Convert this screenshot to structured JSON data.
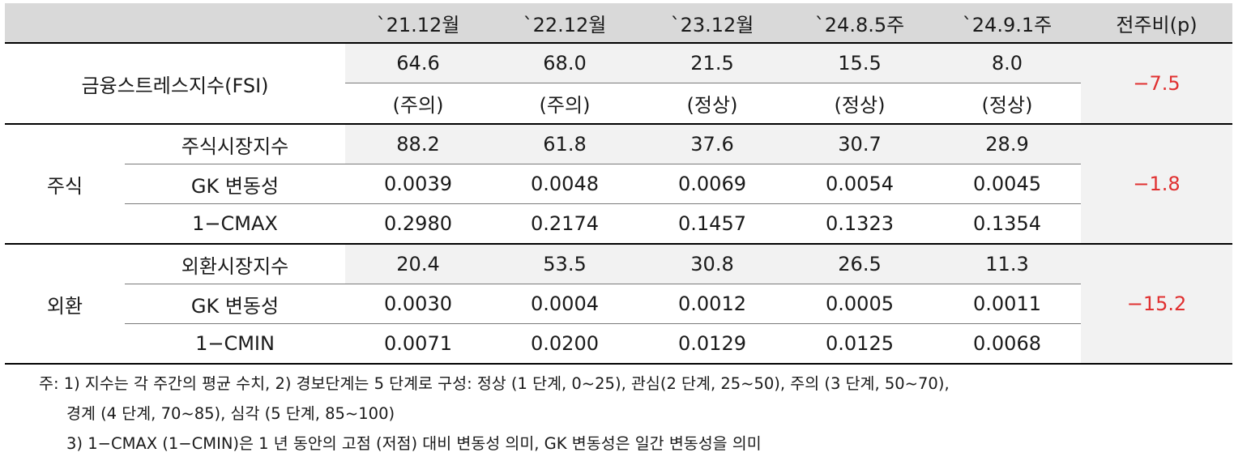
{
  "header": {
    "columns": [
      "`21.12월",
      "`22.12월",
      "`23.12월",
      "`24.8.5주",
      "`24.9.1주"
    ],
    "change": "전주비(p)"
  },
  "fsi": {
    "label": "금융스트레스지수(FSI)",
    "values": [
      "64.6",
      "68.0",
      "21.5",
      "15.5",
      "8.0"
    ],
    "statuses": [
      "(주의)",
      "(주의)",
      "(정상)",
      "(정상)",
      "(정상)"
    ],
    "change": "−7.5"
  },
  "stock": {
    "group": "주식",
    "change": "−1.8",
    "rows": [
      {
        "label": "주식시장지수",
        "values": [
          "88.2",
          "61.8",
          "37.6",
          "30.7",
          "28.9"
        ]
      },
      {
        "label": "GK 변동성",
        "values": [
          "0.0039",
          "0.0048",
          "0.0069",
          "0.0054",
          "0.0045"
        ]
      },
      {
        "label": "1−CMAX",
        "values": [
          "0.2980",
          "0.2174",
          "0.1457",
          "0.1323",
          "0.1354"
        ]
      }
    ]
  },
  "fx": {
    "group": "외환",
    "change": "−15.2",
    "rows": [
      {
        "label": "외환시장지수",
        "values": [
          "20.4",
          "53.5",
          "30.8",
          "26.5",
          "11.3"
        ]
      },
      {
        "label": "GK 변동성",
        "values": [
          "0.0030",
          "0.0004",
          "0.0012",
          "0.0005",
          "0.0011"
        ]
      },
      {
        "label": "1−CMIN",
        "values": [
          "0.0071",
          "0.0200",
          "0.0129",
          "0.0125",
          "0.0068"
        ]
      }
    ]
  },
  "notes": [
    "주: 1) 지수는 각 주간의 평균 수치, 2) 경보단계는 5 단계로 구성: 정상 (1 단계, 0~25), 관심(2 단계, 25~50), 주의 (3 단계, 50~70),",
    "경계 (4 단계, 70~85), 심각 (5 단계, 85~100)",
    "3) 1−CMAX (1−CMIN)은 1 년 동안의 고점 (저점) 대비 변동성 의미, GK 변동성은 일간 변동성을 의미"
  ],
  "colors": {
    "header_bg": "#d9d9d9",
    "shade_bg": "#f2f2f2",
    "negative": "#e03030"
  }
}
